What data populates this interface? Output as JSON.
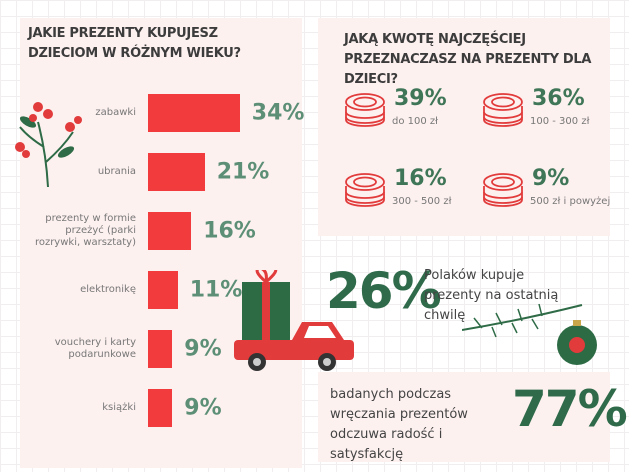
{
  "chart_data": {
    "type": "bar",
    "orientation": "horizontal",
    "title": "JAKIE PREZENTY KUPUJESZ DZIECIOM W RÓŻNYM WIEKU?",
    "categories": [
      "zabawki",
      "ubrania",
      "prezenty w formie przeżyć (parki rozrywki, warsztaty)",
      "elektronikę",
      "vouchery i karty podarunkowe",
      "książki"
    ],
    "values": [
      34,
      21,
      16,
      11,
      9,
      9
    ],
    "value_labels": [
      "34%",
      "21%",
      "16%",
      "11%",
      "9%",
      "9%"
    ],
    "color": "#f23b3d"
  },
  "budget": {
    "title": "JAKĄ KWOTĘ NAJCZĘŚCIEJ PRZEZNACZASZ NA PREZENTY DLA DZIECI?",
    "items": [
      {
        "value": "39%",
        "label": "do 100 zł"
      },
      {
        "value": "36%",
        "label": "100 - 300 zł"
      },
      {
        "value": "16%",
        "label": "300 - 500 zł"
      },
      {
        "value": "9%",
        "label": "500 zł i powyżej"
      }
    ]
  },
  "stats": [
    {
      "value": "26%",
      "text": "Polaków kupuje prezenty na ostatnią chwilę"
    },
    {
      "value": "77%",
      "text": "badanych podczas wręczania prezentów odczuwa radość i satysfakcję"
    }
  ]
}
